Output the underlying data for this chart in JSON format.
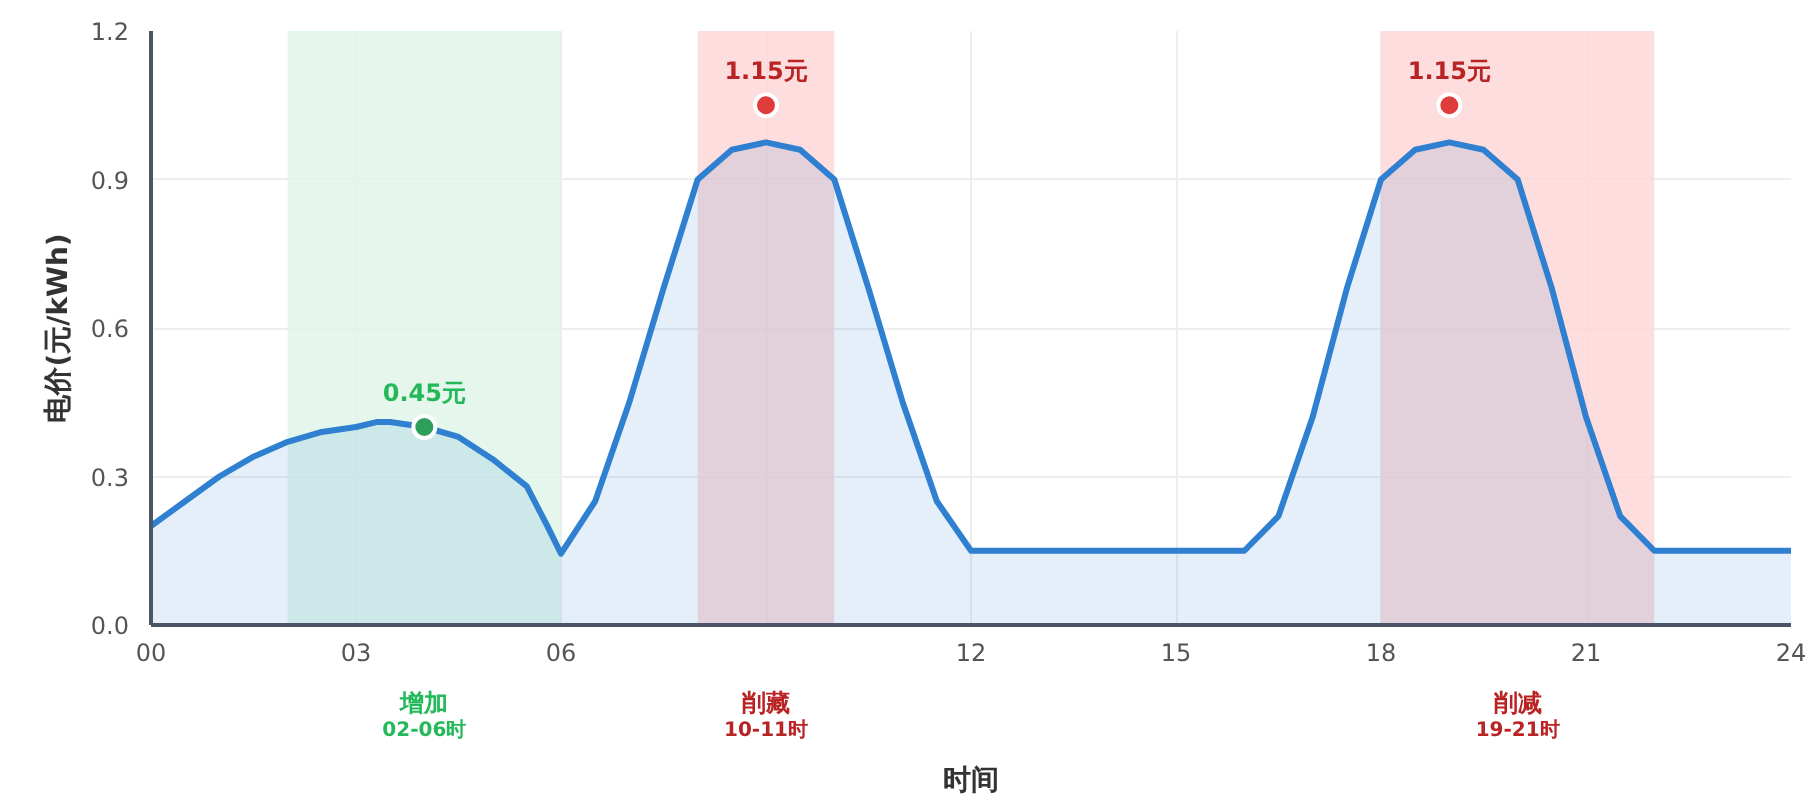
{
  "chart_data": {
    "type": "area",
    "xlabel": "时间",
    "ylabel": "电价(元/kWh)",
    "xlim": [
      0,
      24
    ],
    "ylim": [
      0,
      1.2
    ],
    "xticks": [
      {
        "value": 0,
        "label": "00"
      },
      {
        "value": 3,
        "label": "03"
      },
      {
        "value": 6,
        "label": "06"
      },
      {
        "value": 9,
        "label": null
      },
      {
        "value": 12,
        "label": "12"
      },
      {
        "value": 15,
        "label": "15"
      },
      {
        "value": 18,
        "label": "18"
      },
      {
        "value": 21,
        "label": "21"
      },
      {
        "value": 24,
        "label": "24"
      }
    ],
    "yticks": [
      {
        "value": 0,
        "label": "0.0"
      },
      {
        "value": 0.3,
        "label": "0.3"
      },
      {
        "value": 0.6,
        "label": "0.6"
      },
      {
        "value": 0.9,
        "label": "0.9"
      },
      {
        "value": 1.2,
        "label": "1.2"
      }
    ],
    "grid": true,
    "series": [
      {
        "color": "#2f80d1",
        "x": [
          0,
          0.5,
          1,
          1.5,
          2,
          2.5,
          3,
          3.3,
          3.5,
          4,
          4.5,
          5,
          5.5,
          5.8,
          6,
          6.5,
          7,
          7.5,
          8,
          8.5,
          9,
          9.5,
          10,
          10.5,
          11,
          11.5,
          12,
          16,
          16.5,
          17,
          17.5,
          18,
          18.5,
          19,
          19.5,
          20,
          20.5,
          21,
          21.5,
          22,
          24
        ],
        "values": [
          0.2,
          0.25,
          0.3,
          0.34,
          0.37,
          0.39,
          0.4,
          0.41,
          0.41,
          0.4,
          0.38,
          0.335,
          0.28,
          0.2,
          0.144,
          0.25,
          0.45,
          0.68,
          0.9,
          0.96,
          0.975,
          0.96,
          0.9,
          0.68,
          0.45,
          0.25,
          0.15,
          0.15,
          0.22,
          0.42,
          0.68,
          0.9,
          0.96,
          0.975,
          0.96,
          0.9,
          0.68,
          0.42,
          0.22,
          0.15,
          0.15
        ]
      },
      {
        "type": "scatter",
        "x": [
          4,
          9,
          19
        ],
        "values": [
          0.4,
          1.05,
          1.05
        ],
        "colors": [
          "#2e9e5b",
          "#e03c3c",
          "#e03c3c"
        ]
      }
    ],
    "annotations": [
      {
        "text": "0.45元",
        "x": 4,
        "y": 0.4
      },
      {
        "text": "1.15元",
        "x": 9,
        "y": 1.05
      },
      {
        "text": "1.15元",
        "x": 19,
        "y": 1.05
      }
    ],
    "bands": [
      {
        "axis": "x",
        "from": 2,
        "to": 6,
        "label": "增加\n02-06时",
        "color": "#dff5e7"
      },
      {
        "axis": "x",
        "from": 8,
        "to": 10,
        "label": "削藏\n10-11时",
        "color": "#fdd5d5"
      },
      {
        "axis": "x",
        "from": 18,
        "to": 22,
        "label": "削减\n19-21时",
        "color": "#fdd5d5"
      }
    ]
  }
}
